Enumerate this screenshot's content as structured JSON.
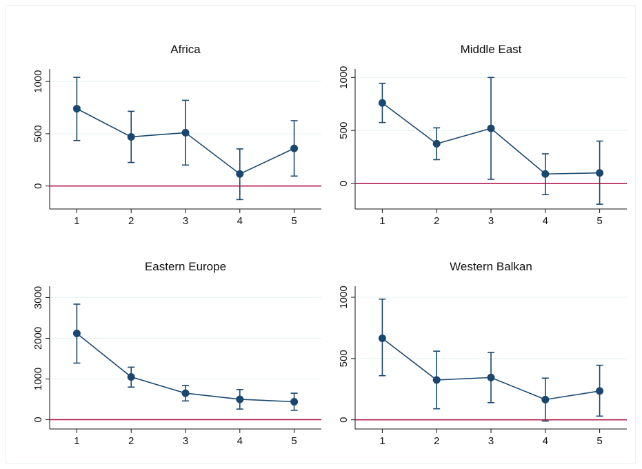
{
  "chart_data": [
    {
      "type": "line",
      "title": "Africa",
      "x": [
        1,
        2,
        3,
        4,
        5
      ],
      "xticks": [
        "1",
        "2",
        "3",
        "4",
        "5"
      ],
      "yticks": [
        0,
        500,
        1000
      ],
      "ylim": [
        -220,
        1120
      ],
      "reference_line_y": 0,
      "series": [
        {
          "values": [
            740,
            470,
            510,
            115,
            360
          ],
          "ci_low": [
            435,
            225,
            200,
            -130,
            95
          ],
          "ci_high": [
            1040,
            715,
            820,
            355,
            625
          ]
        }
      ]
    },
    {
      "type": "line",
      "title": "Middle East",
      "x": [
        1,
        2,
        3,
        4,
        5
      ],
      "xticks": [
        "1",
        "2",
        "3",
        "4",
        "5"
      ],
      "yticks": [
        0,
        500,
        1000
      ],
      "ylim": [
        -240,
        1080
      ],
      "reference_line_y": 0,
      "series": [
        {
          "values": [
            760,
            375,
            520,
            90,
            100
          ],
          "ci_low": [
            575,
            225,
            40,
            -105,
            -195
          ],
          "ci_high": [
            945,
            525,
            1000,
            280,
            400
          ]
        }
      ]
    },
    {
      "type": "line",
      "title": "Eastern Europe",
      "x": [
        1,
        2,
        3,
        4,
        5
      ],
      "xticks": [
        "1",
        "2",
        "3",
        "4",
        "5"
      ],
      "yticks": [
        0,
        1000,
        2000,
        3000
      ],
      "ylim": [
        -230,
        3280
      ],
      "reference_line_y": 0,
      "series": [
        {
          "values": [
            2120,
            1050,
            650,
            500,
            440
          ],
          "ci_low": [
            1390,
            800,
            460,
            260,
            230
          ],
          "ci_high": [
            2840,
            1290,
            840,
            740,
            650
          ]
        }
      ]
    },
    {
      "type": "line",
      "title": "Western Balkan",
      "x": [
        1,
        2,
        3,
        4,
        5
      ],
      "xticks": [
        "1",
        "2",
        "3",
        "4",
        "5"
      ],
      "yticks": [
        0,
        500,
        1000
      ],
      "ylim": [
        -75,
        1090
      ],
      "reference_line_y": 0,
      "series": [
        {
          "values": [
            665,
            325,
            345,
            165,
            235
          ],
          "ci_low": [
            360,
            90,
            140,
            -10,
            30
          ],
          "ci_high": [
            985,
            560,
            550,
            340,
            445
          ]
        }
      ]
    }
  ],
  "colors": {
    "series": "#1a476f",
    "reference_line": "#b01c4c",
    "grid": "#eaf2f3",
    "axis": "#111111"
  }
}
